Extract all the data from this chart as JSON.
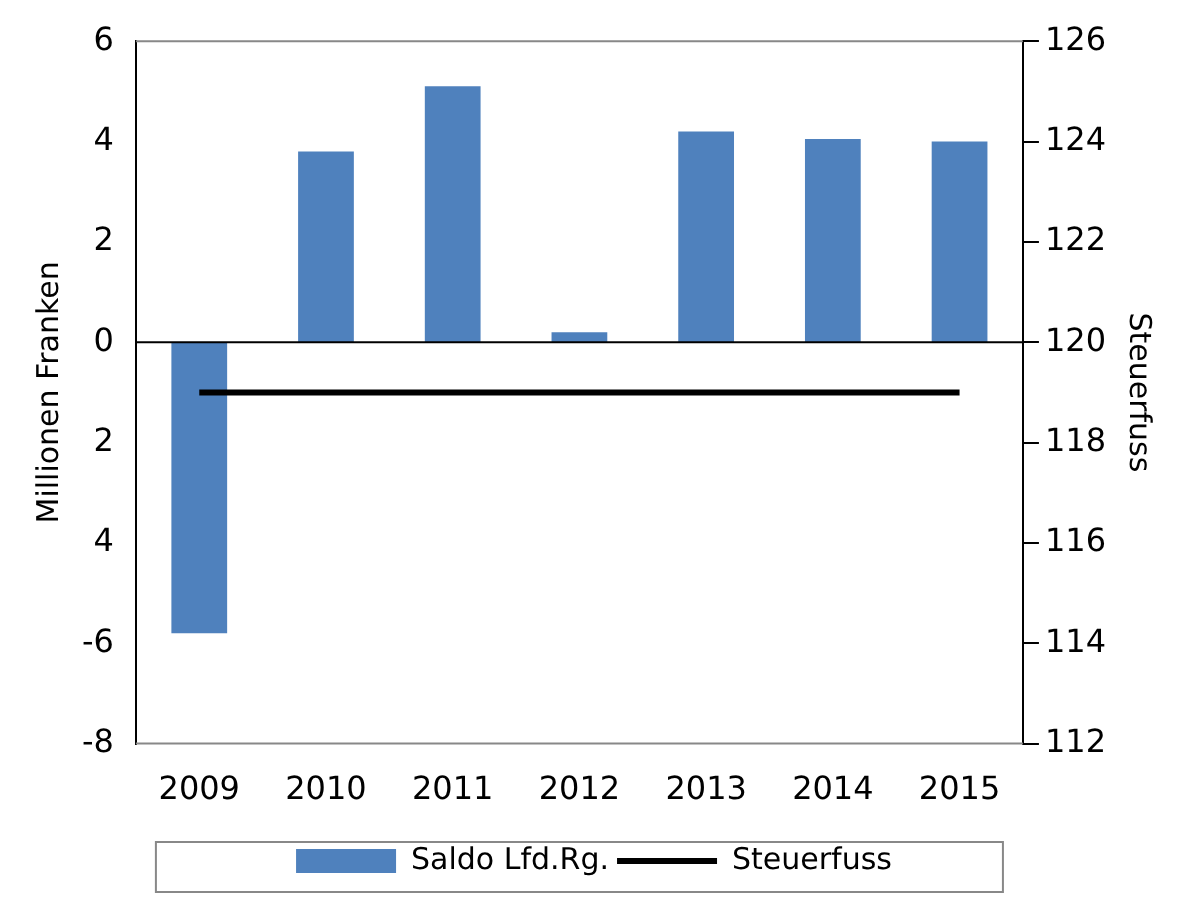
{
  "chart_data": {
    "type": "bar",
    "ylabel": "Millionen Franken",
    "y2label": "Steuerfuss",
    "categories": [
      "2009",
      "2010",
      "2011",
      "2012",
      "2013",
      "2014",
      "2015"
    ],
    "series": [
      {
        "name": "Saldo Lfd.Rg.",
        "color": "#4f81bd",
        "values": [
          -5.8,
          3.8,
          5.1,
          0.2,
          4.2,
          4.05,
          4.0
        ]
      },
      {
        "name": "Steuerfuss",
        "type": "line",
        "axis": "y2",
        "color": "#000000",
        "values": [
          119,
          119,
          119,
          119,
          119,
          119,
          119
        ]
      }
    ],
    "ylim": [
      -8,
      6
    ],
    "yticks": [
      -8,
      -6,
      {
        "value": -4,
        "label": "4"
      },
      {
        "value": -2,
        "label": "2"
      },
      0,
      2,
      4,
      6
    ],
    "y2lim": [
      112,
      126
    ],
    "y2ticks": [
      112,
      114,
      116,
      118,
      120,
      122,
      124,
      126
    ],
    "legend": "bottom",
    "marker": "none",
    "grid": false
  }
}
